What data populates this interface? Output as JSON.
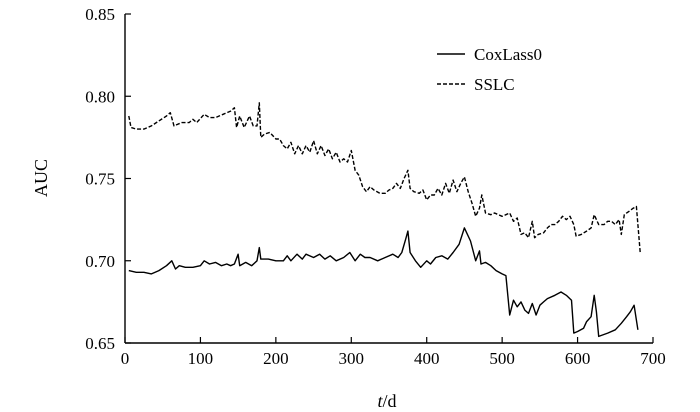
{
  "chart_data": {
    "type": "line",
    "xlabel_italic": "t",
    "xlabel_rest": "/d",
    "ylabel": "AUC",
    "xlim": [
      0,
      700
    ],
    "ylim": [
      0.65,
      0.85
    ],
    "xticks": [
      0,
      100,
      200,
      300,
      400,
      500,
      600,
      700
    ],
    "xtick_labels": [
      "0",
      "100",
      "200",
      "300",
      "400",
      "500",
      "600",
      "700"
    ],
    "yticks": [
      0.65,
      0.7,
      0.75,
      0.8,
      0.85
    ],
    "ytick_labels": [
      "0.65",
      "0.70",
      "0.75",
      "0.80",
      "0.85"
    ],
    "grid": false,
    "legend_position": "top-right",
    "series": [
      {
        "name": "CoxLass0",
        "style": "solid",
        "color": "#000000",
        "points": [
          [
            5,
            0.694
          ],
          [
            15,
            0.693
          ],
          [
            25,
            0.693
          ],
          [
            35,
            0.692
          ],
          [
            45,
            0.694
          ],
          [
            55,
            0.697
          ],
          [
            62,
            0.7
          ],
          [
            67,
            0.695
          ],
          [
            72,
            0.697
          ],
          [
            80,
            0.696
          ],
          [
            90,
            0.696
          ],
          [
            100,
            0.697
          ],
          [
            105,
            0.7
          ],
          [
            112,
            0.698
          ],
          [
            120,
            0.699
          ],
          [
            128,
            0.697
          ],
          [
            135,
            0.698
          ],
          [
            140,
            0.697
          ],
          [
            145,
            0.698
          ],
          [
            150,
            0.704
          ],
          [
            152,
            0.697
          ],
          [
            160,
            0.699
          ],
          [
            168,
            0.697
          ],
          [
            175,
            0.7
          ],
          [
            178,
            0.708
          ],
          [
            180,
            0.701
          ],
          [
            190,
            0.701
          ],
          [
            200,
            0.7
          ],
          [
            210,
            0.7
          ],
          [
            215,
            0.703
          ],
          [
            220,
            0.7
          ],
          [
            228,
            0.704
          ],
          [
            235,
            0.701
          ],
          [
            240,
            0.704
          ],
          [
            250,
            0.702
          ],
          [
            258,
            0.704
          ],
          [
            265,
            0.701
          ],
          [
            272,
            0.703
          ],
          [
            280,
            0.7
          ],
          [
            290,
            0.702
          ],
          [
            298,
            0.705
          ],
          [
            305,
            0.7
          ],
          [
            312,
            0.704
          ],
          [
            318,
            0.702
          ],
          [
            325,
            0.702
          ],
          [
            335,
            0.7
          ],
          [
            345,
            0.702
          ],
          [
            355,
            0.704
          ],
          [
            362,
            0.702
          ],
          [
            367,
            0.705
          ],
          [
            372,
            0.713
          ],
          [
            375,
            0.718
          ],
          [
            378,
            0.705
          ],
          [
            385,
            0.7
          ],
          [
            392,
            0.696
          ],
          [
            400,
            0.7
          ],
          [
            405,
            0.698
          ],
          [
            412,
            0.702
          ],
          [
            420,
            0.703
          ],
          [
            428,
            0.701
          ],
          [
            435,
            0.705
          ],
          [
            443,
            0.71
          ],
          [
            450,
            0.72
          ],
          [
            458,
            0.712
          ],
          [
            465,
            0.7
          ],
          [
            470,
            0.706
          ],
          [
            472,
            0.698
          ],
          [
            478,
            0.699
          ],
          [
            485,
            0.697
          ],
          [
            492,
            0.694
          ],
          [
            500,
            0.692
          ],
          [
            505,
            0.691
          ],
          [
            510,
            0.667
          ],
          [
            515,
            0.676
          ],
          [
            520,
            0.672
          ],
          [
            525,
            0.675
          ],
          [
            530,
            0.67
          ],
          [
            535,
            0.668
          ],
          [
            540,
            0.674
          ],
          [
            545,
            0.667
          ],
          [
            550,
            0.673
          ],
          [
            555,
            0.675
          ],
          [
            560,
            0.677
          ],
          [
            570,
            0.679
          ],
          [
            578,
            0.681
          ],
          [
            585,
            0.679
          ],
          [
            592,
            0.676
          ],
          [
            595,
            0.656
          ],
          [
            600,
            0.657
          ],
          [
            608,
            0.659
          ],
          [
            612,
            0.663
          ],
          [
            618,
            0.666
          ],
          [
            622,
            0.679
          ],
          [
            625,
            0.669
          ],
          [
            628,
            0.654
          ],
          [
            640,
            0.656
          ],
          [
            650,
            0.658
          ],
          [
            658,
            0.662
          ],
          [
            665,
            0.666
          ],
          [
            670,
            0.669
          ],
          [
            675,
            0.673
          ],
          [
            680,
            0.658
          ]
        ]
      },
      {
        "name": "SSLC",
        "style": "dashed",
        "color": "#000000",
        "points": [
          [
            5,
            0.788
          ],
          [
            8,
            0.781
          ],
          [
            15,
            0.78
          ],
          [
            25,
            0.78
          ],
          [
            35,
            0.782
          ],
          [
            45,
            0.785
          ],
          [
            55,
            0.788
          ],
          [
            60,
            0.79
          ],
          [
            65,
            0.782
          ],
          [
            75,
            0.784
          ],
          [
            85,
            0.784
          ],
          [
            90,
            0.786
          ],
          [
            95,
            0.784
          ],
          [
            105,
            0.789
          ],
          [
            112,
            0.787
          ],
          [
            120,
            0.787
          ],
          [
            130,
            0.789
          ],
          [
            140,
            0.791
          ],
          [
            145,
            0.793
          ],
          [
            148,
            0.781
          ],
          [
            152,
            0.788
          ],
          [
            158,
            0.781
          ],
          [
            165,
            0.788
          ],
          [
            170,
            0.782
          ],
          [
            175,
            0.782
          ],
          [
            178,
            0.796
          ],
          [
            180,
            0.775
          ],
          [
            185,
            0.777
          ],
          [
            192,
            0.778
          ],
          [
            200,
            0.774
          ],
          [
            205,
            0.774
          ],
          [
            210,
            0.77
          ],
          [
            215,
            0.768
          ],
          [
            220,
            0.772
          ],
          [
            225,
            0.765
          ],
          [
            230,
            0.77
          ],
          [
            235,
            0.765
          ],
          [
            240,
            0.77
          ],
          [
            245,
            0.766
          ],
          [
            250,
            0.773
          ],
          [
            255,
            0.765
          ],
          [
            260,
            0.77
          ],
          [
            265,
            0.764
          ],
          [
            270,
            0.768
          ],
          [
            275,
            0.762
          ],
          [
            280,
            0.766
          ],
          [
            285,
            0.76
          ],
          [
            290,
            0.762
          ],
          [
            295,
            0.76
          ],
          [
            300,
            0.767
          ],
          [
            305,
            0.755
          ],
          [
            310,
            0.752
          ],
          [
            315,
            0.745
          ],
          [
            320,
            0.742
          ],
          [
            325,
            0.745
          ],
          [
            330,
            0.743
          ],
          [
            338,
            0.741
          ],
          [
            345,
            0.741
          ],
          [
            350,
            0.743
          ],
          [
            355,
            0.744
          ],
          [
            360,
            0.747
          ],
          [
            365,
            0.744
          ],
          [
            370,
            0.75
          ],
          [
            375,
            0.755
          ],
          [
            378,
            0.744
          ],
          [
            383,
            0.742
          ],
          [
            390,
            0.741
          ],
          [
            395,
            0.743
          ],
          [
            400,
            0.737
          ],
          [
            405,
            0.74
          ],
          [
            410,
            0.74
          ],
          [
            415,
            0.744
          ],
          [
            420,
            0.74
          ],
          [
            425,
            0.747
          ],
          [
            430,
            0.741
          ],
          [
            435,
            0.749
          ],
          [
            440,
            0.742
          ],
          [
            445,
            0.747
          ],
          [
            450,
            0.751
          ],
          [
            455,
            0.742
          ],
          [
            460,
            0.735
          ],
          [
            465,
            0.727
          ],
          [
            470,
            0.732
          ],
          [
            473,
            0.74
          ],
          [
            478,
            0.729
          ],
          [
            485,
            0.728
          ],
          [
            490,
            0.729
          ],
          [
            495,
            0.728
          ],
          [
            500,
            0.727
          ],
          [
            505,
            0.728
          ],
          [
            510,
            0.729
          ],
          [
            515,
            0.724
          ],
          [
            520,
            0.726
          ],
          [
            525,
            0.716
          ],
          [
            530,
            0.717
          ],
          [
            535,
            0.714
          ],
          [
            540,
            0.724
          ],
          [
            543,
            0.714
          ],
          [
            548,
            0.716
          ],
          [
            555,
            0.717
          ],
          [
            560,
            0.72
          ],
          [
            565,
            0.722
          ],
          [
            570,
            0.722
          ],
          [
            575,
            0.724
          ],
          [
            580,
            0.727
          ],
          [
            585,
            0.725
          ],
          [
            590,
            0.727
          ],
          [
            595,
            0.722
          ],
          [
            598,
            0.715
          ],
          [
            605,
            0.716
          ],
          [
            612,
            0.718
          ],
          [
            618,
            0.72
          ],
          [
            622,
            0.728
          ],
          [
            628,
            0.722
          ],
          [
            635,
            0.722
          ],
          [
            640,
            0.724
          ],
          [
            645,
            0.724
          ],
          [
            650,
            0.722
          ],
          [
            655,
            0.725
          ],
          [
            658,
            0.716
          ],
          [
            662,
            0.728
          ],
          [
            668,
            0.73
          ],
          [
            674,
            0.732
          ],
          [
            678,
            0.733
          ],
          [
            683,
            0.705
          ]
        ]
      }
    ]
  }
}
